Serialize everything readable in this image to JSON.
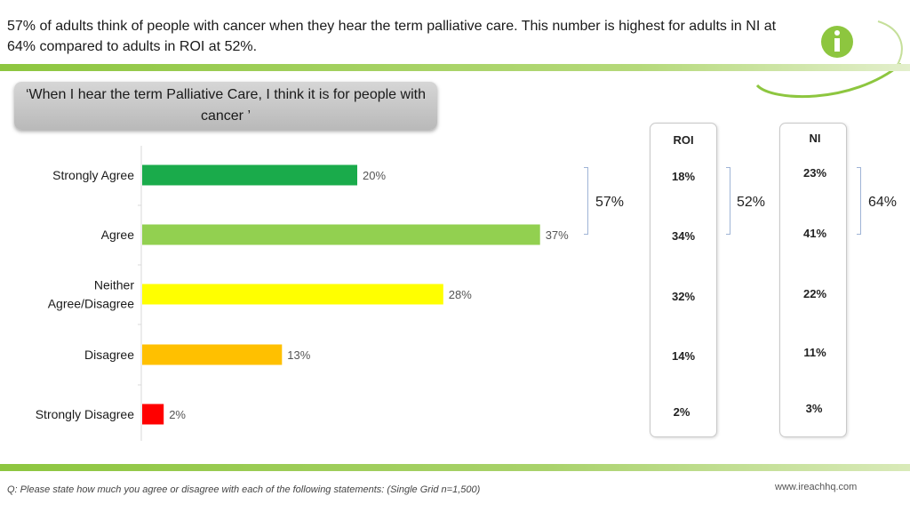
{
  "headline": "57% of adults think of people with cancer when they hear the term palliative care. This number is highest for adults in NI at 64% compared to adults in ROI at 52%.",
  "statement": "‘When I hear the term Palliative Care, I think  it is for people with cancer ’",
  "chart_data": {
    "type": "bar",
    "orientation": "horizontal",
    "categories": [
      "Strongly Agree",
      "Agree",
      "Neither Agree/Disagree",
      "Disagree",
      "Strongly Disagree"
    ],
    "values": [
      20,
      37,
      28,
      13,
      2
    ],
    "data_labels": [
      "20%",
      "37%",
      "28%",
      "13%",
      "2%"
    ],
    "xlim": [
      0,
      50
    ],
    "grid": false,
    "colors": [
      "#1aab4b",
      "#92d050",
      "#ffff00",
      "#ffc000",
      "#ff0000"
    ]
  },
  "columns": {
    "roi": {
      "label": "ROI",
      "values": [
        "18%",
        "34%",
        "32%",
        "14%",
        "2%"
      ]
    },
    "ni": {
      "label": "NI",
      "values": [
        "23%",
        "41%",
        "22%",
        "11%",
        "3%"
      ]
    }
  },
  "nets": {
    "total": "57%",
    "roi": "52%",
    "ni": "64%"
  },
  "footnote": "Q: Please state how much you agree or disagree with each of the following statements: (Single Grid n=1,500)",
  "website": "www.ireachhq.com",
  "accent_color": "#8dc63f"
}
